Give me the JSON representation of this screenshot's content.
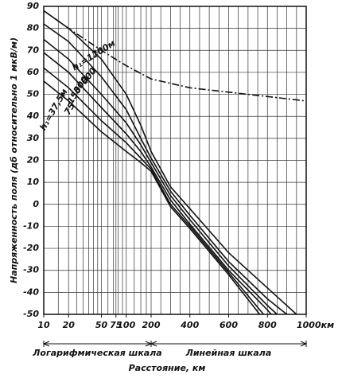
{
  "chart_data": {
    "type": "line",
    "ylabel": "Напряженность поля (дб относительно 1 мкВ/м)",
    "xlabel": "Расстояние, км",
    "scale_labels": [
      "Логарифмическая шкала",
      "Линейная шкала"
    ],
    "x_log_range": [
      10,
      200
    ],
    "xlim": [
      10,
      1000
    ],
    "ylim": [
      -50,
      90
    ],
    "xticks": [
      10,
      20,
      50,
      75,
      100,
      200,
      400,
      600,
      800,
      {
        "value": 1000,
        "label": "1000км"
      }
    ],
    "xgrid": [
      10,
      15,
      20,
      25,
      30,
      35,
      40,
      45,
      50,
      60,
      70,
      75,
      80,
      90,
      100,
      125,
      150,
      175,
      200,
      250,
      300,
      350,
      400,
      450,
      500,
      550,
      600,
      650,
      700,
      750,
      800,
      850,
      900,
      950,
      1000
    ],
    "yticks": [
      90,
      80,
      70,
      60,
      50,
      40,
      30,
      20,
      10,
      0,
      -10,
      -20,
      -30,
      -40,
      -50
    ],
    "grid": true,
    "series": [
      {
        "color": "#111",
        "dash": "9 3 2 3",
        "x": [
          10,
          20,
          50,
          100,
          200,
          400,
          600,
          800,
          1000
        ],
        "values": [
          88,
          80,
          70,
          63,
          57,
          53,
          51,
          49,
          47
        ]
      },
      {
        "name": "h₁=1200м",
        "color": "#111",
        "x": [
          10,
          20,
          50,
          100,
          150,
          200,
          300,
          400,
          600,
          800,
          950
        ],
        "values": [
          88,
          80,
          66,
          50,
          36,
          24,
          8,
          -2,
          -22,
          -38,
          -50
        ]
      },
      {
        "name": "600",
        "color": "#111",
        "x": [
          10,
          20,
          50,
          100,
          150,
          200,
          300,
          400,
          600,
          800,
          900
        ],
        "values": [
          82,
          74,
          58,
          43,
          30,
          21,
          6,
          -5,
          -26,
          -43,
          -50
        ]
      },
      {
        "name": "300",
        "color": "#111",
        "x": [
          10,
          20,
          50,
          100,
          150,
          200,
          300,
          400,
          600,
          800,
          850
        ],
        "values": [
          75,
          66,
          50,
          37,
          27,
          19,
          4,
          -7,
          -28,
          -46,
          -50
        ]
      },
      {
        "name": "150",
        "color": "#111",
        "x": [
          10,
          20,
          50,
          100,
          150,
          200,
          300,
          400,
          600,
          800,
          820
        ],
        "values": [
          69,
          60,
          44,
          32,
          24,
          17,
          2,
          -9,
          -30,
          -48,
          -50
        ]
      },
      {
        "name": "75",
        "color": "#111",
        "x": [
          10,
          20,
          50,
          100,
          150,
          200,
          300,
          400,
          600,
          780
        ],
        "values": [
          62,
          53,
          38,
          28,
          21,
          16,
          0,
          -10,
          -31,
          -50
        ]
      },
      {
        "name": "h₁=37,5м",
        "color": "#111",
        "x": [
          10,
          20,
          50,
          100,
          150,
          200,
          300,
          400,
          600,
          760
        ],
        "values": [
          56,
          47,
          33,
          24,
          19,
          15,
          -1,
          -11,
          -32,
          -50
        ]
      }
    ]
  }
}
